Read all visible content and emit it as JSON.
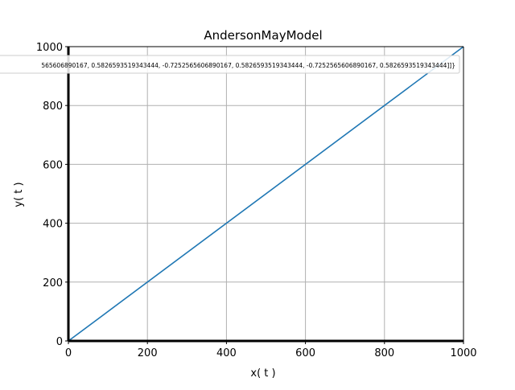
{
  "chart_data": {
    "type": "line",
    "title": "AndersonMayModel",
    "xlabel": "x( t )",
    "ylabel": "y( t )",
    "xlim": [
      0,
      1000
    ],
    "ylim": [
      0,
      1000
    ],
    "xticks": [
      0,
      200,
      400,
      600,
      800,
      1000
    ],
    "yticks": [
      0,
      200,
      400,
      600,
      800,
      1000
    ],
    "grid": true,
    "legend_placement": "top",
    "legend_text": "565606890167, 0.5826593519343444, -0.7252565606890167, 0.5826593519343444, -0.7252565606890167, 0.5826593519343444]]}",
    "series": [
      {
        "color": "#1f77b4",
        "x": [
          0,
          1000
        ],
        "y": [
          0,
          1000
        ]
      }
    ],
    "axis_line_color": "#000000",
    "grid_color": "#b0b0b0"
  }
}
